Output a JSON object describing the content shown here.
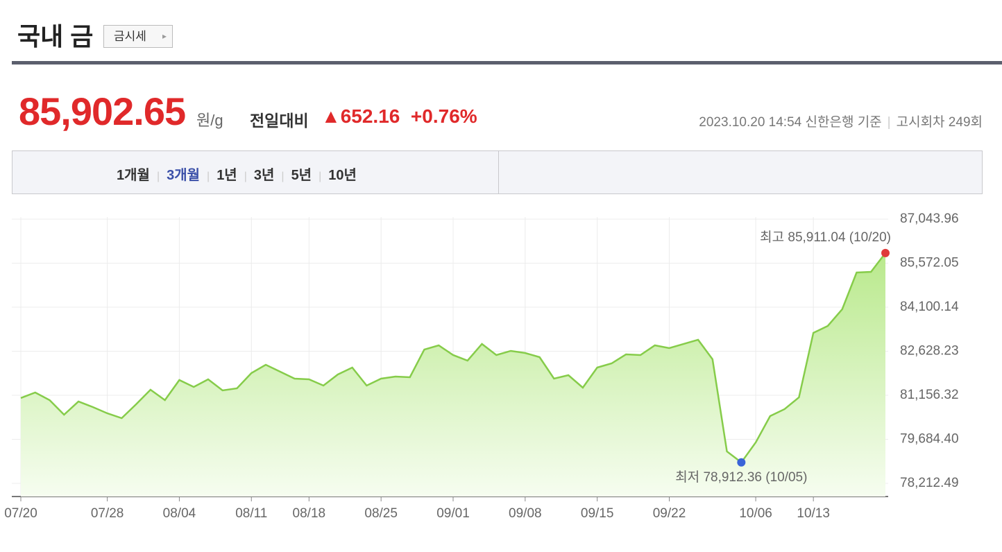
{
  "header": {
    "title": "국내 금",
    "button": "금시세"
  },
  "price": {
    "value": "85,902.65",
    "unit": "원/g",
    "change_label": "전일대비",
    "change": "▲652.16",
    "change_pct": "+0.76%"
  },
  "info": {
    "datetime": "2023.10.20 14:54",
    "source": "신한은행 기준",
    "round": "고시회차 249회"
  },
  "tabs": [
    "1개월",
    "3개월",
    "1년",
    "3년",
    "5년",
    "10년"
  ],
  "active_tab": "3개월",
  "chart_data": {
    "type": "area",
    "categories": [
      "07/20",
      null,
      null,
      null,
      null,
      null,
      "07/28",
      null,
      null,
      null,
      null,
      "08/04",
      null,
      null,
      null,
      null,
      "08/11",
      null,
      null,
      null,
      "08/18",
      null,
      null,
      null,
      null,
      "08/25",
      null,
      null,
      null,
      null,
      "09/01",
      null,
      null,
      null,
      null,
      "09/08",
      null,
      null,
      null,
      null,
      "09/15",
      null,
      null,
      null,
      null,
      "09/22",
      null,
      null,
      null,
      null,
      null,
      "10/06",
      null,
      null,
      null,
      "10/13",
      null,
      null,
      null,
      null,
      null
    ],
    "series": [
      {
        "color": "#86cc4a",
        "values": [
          81064,
          81249,
          80994,
          80507,
          80948,
          80762,
          80554,
          80391,
          80855,
          81342,
          80994,
          81666,
          81434,
          81689,
          81319,
          81388,
          81898,
          82176,
          81944,
          81713,
          81689,
          81481,
          81852,
          82083,
          81481,
          81713,
          81782,
          81759,
          82686,
          82825,
          82501,
          82315,
          82872,
          82501,
          82640,
          82570,
          82431,
          81713,
          81828,
          81411,
          82083,
          82222,
          82524,
          82501,
          82825,
          82732,
          82872,
          83011,
          82361,
          79279,
          78912.36,
          79580,
          80461,
          80693,
          81087,
          83243,
          83474,
          84031,
          85259,
          85282,
          85911.04
        ]
      }
    ],
    "ylim": [
      77772,
      87113
    ],
    "yticks": [
      {
        "value": 78212.49,
        "label": "78,212.49"
      },
      {
        "value": 79684.4,
        "label": "79,684.40"
      },
      {
        "value": 81156.32,
        "label": "81,156.32"
      },
      {
        "value": 82628.23,
        "label": "82,628.23"
      },
      {
        "value": 84100.14,
        "label": "84,100.14"
      },
      {
        "value": 85572.05,
        "label": "85,572.05"
      },
      {
        "value": 87043.96,
        "label": "87,043.96"
      }
    ],
    "grid": true,
    "annotations": [
      {
        "text": "최고 85,911.04 (10/20)",
        "color": "#e03a3a"
      },
      {
        "text": "최저 78,912.36 (10/05)",
        "color": "#3a64d8"
      }
    ]
  }
}
